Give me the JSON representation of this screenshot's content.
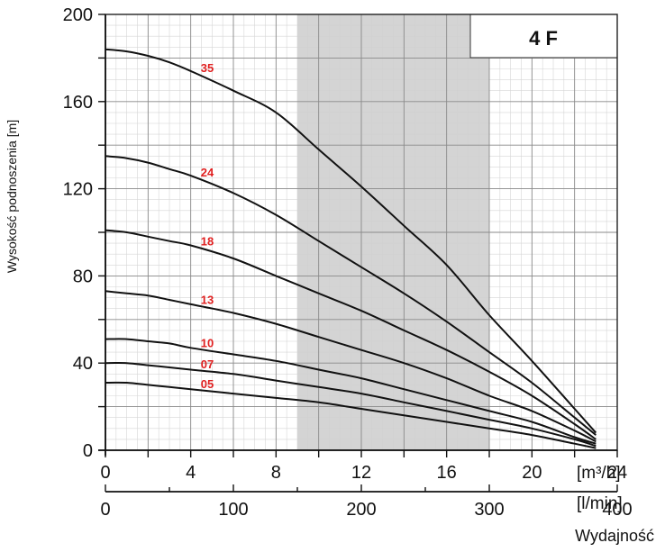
{
  "chart_data": {
    "type": "line",
    "model": "4 F",
    "ylabel": "Wysokość podnoszenia [m]",
    "xlabel": "Wydajność",
    "x_unit": "[m³/h]",
    "x2_unit": "[l/min]",
    "ylim": [
      0,
      200
    ],
    "xlim": [
      0,
      24
    ],
    "y_ticks": [
      "0",
      "40",
      "80",
      "120",
      "160",
      "200"
    ],
    "x_ticks": [
      "0",
      "4",
      "8",
      "12",
      "16",
      "20",
      "24"
    ],
    "x2_ticks": [
      "0",
      "100",
      "200",
      "300",
      "400"
    ],
    "shaded_range": [
      9,
      18
    ],
    "grid": true,
    "series": [
      {
        "name": "35",
        "x": [
          0,
          1,
          2,
          3,
          4,
          6,
          8,
          10,
          12,
          14,
          16,
          18,
          20,
          22,
          23
        ],
        "y": [
          184,
          183,
          181,
          178,
          174,
          165,
          155,
          138,
          121,
          103,
          85,
          62,
          41,
          19,
          8
        ]
      },
      {
        "name": "24",
        "x": [
          0,
          1,
          2,
          3,
          4,
          6,
          8,
          10,
          12,
          14,
          16,
          18,
          20,
          22,
          23
        ],
        "y": [
          135,
          134,
          132,
          129,
          126,
          118,
          108,
          96,
          84,
          72,
          59,
          45,
          31,
          15,
          7
        ]
      },
      {
        "name": "18",
        "x": [
          0,
          1,
          2,
          3,
          4,
          6,
          8,
          10,
          12,
          14,
          16,
          18,
          20,
          22,
          23
        ],
        "y": [
          101,
          100,
          98,
          96,
          94,
          88,
          80,
          72,
          64,
          55,
          46,
          36,
          25,
          12,
          5
        ]
      },
      {
        "name": "13",
        "x": [
          0,
          1,
          2,
          3,
          4,
          6,
          8,
          10,
          12,
          14,
          16,
          18,
          20,
          22,
          23
        ],
        "y": [
          73,
          72,
          71,
          69,
          67,
          63,
          58,
          52,
          46,
          40,
          33,
          25,
          18,
          9,
          4
        ]
      },
      {
        "name": "10",
        "x": [
          0,
          1,
          2,
          3,
          4,
          6,
          8,
          10,
          12,
          14,
          16,
          18,
          20,
          22,
          23
        ],
        "y": [
          51,
          51,
          50,
          49,
          47,
          44,
          41,
          37,
          33,
          28,
          23,
          18,
          13,
          6,
          3
        ]
      },
      {
        "name": "07",
        "x": [
          0,
          1,
          2,
          3,
          4,
          6,
          8,
          10,
          12,
          14,
          16,
          18,
          20,
          22,
          23
        ],
        "y": [
          40,
          40,
          39,
          38,
          37,
          35,
          32,
          29,
          26,
          22,
          18,
          14,
          10,
          5,
          2
        ]
      },
      {
        "name": "05",
        "x": [
          0,
          1,
          2,
          3,
          4,
          6,
          8,
          10,
          12,
          14,
          16,
          18,
          20,
          22,
          23
        ],
        "y": [
          31,
          31,
          30,
          29,
          28,
          26,
          24,
          22,
          19,
          16,
          13,
          10,
          7,
          3,
          1
        ]
      }
    ]
  }
}
